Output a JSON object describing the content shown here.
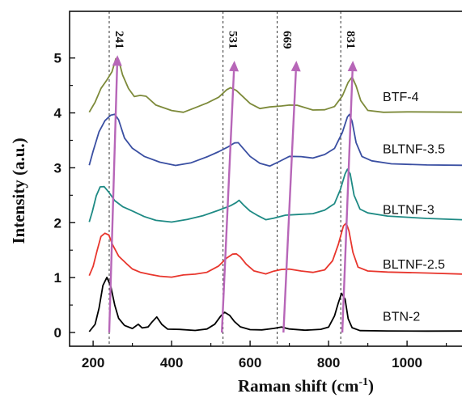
{
  "chart_data": {
    "type": "line",
    "xlabel": "Raman shift (cm",
    "xlabel_sup": "-1",
    "xlabel_end": ")",
    "ylabel": "Intensity (a.u.)",
    "xlim": [
      140,
      1140
    ],
    "ylim": [
      -0.25,
      5.85
    ],
    "xticks": [
      200,
      400,
      600,
      800,
      1000
    ],
    "yticks": [
      0,
      1,
      2,
      3,
      4,
      5
    ],
    "series": [
      {
        "name": "BTN-2",
        "color": "#000000",
        "offset": 0,
        "points": [
          [
            190,
            0.02
          ],
          [
            205,
            0.15
          ],
          [
            215,
            0.45
          ],
          [
            225,
            0.85
          ],
          [
            235,
            1.0
          ],
          [
            245,
            0.85
          ],
          [
            255,
            0.5
          ],
          [
            265,
            0.25
          ],
          [
            280,
            0.12
          ],
          [
            300,
            0.08
          ],
          [
            315,
            0.16
          ],
          [
            325,
            0.08
          ],
          [
            340,
            0.1
          ],
          [
            350,
            0.18
          ],
          [
            362,
            0.28
          ],
          [
            375,
            0.15
          ],
          [
            390,
            0.06
          ],
          [
            420,
            0.05
          ],
          [
            460,
            0.04
          ],
          [
            490,
            0.06
          ],
          [
            510,
            0.15
          ],
          [
            525,
            0.3
          ],
          [
            535,
            0.36
          ],
          [
            548,
            0.32
          ],
          [
            560,
            0.2
          ],
          [
            575,
            0.1
          ],
          [
            600,
            0.06
          ],
          [
            630,
            0.05
          ],
          [
            660,
            0.07
          ],
          [
            680,
            0.1
          ],
          [
            700,
            0.07
          ],
          [
            740,
            0.05
          ],
          [
            780,
            0.06
          ],
          [
            800,
            0.1
          ],
          [
            815,
            0.3
          ],
          [
            825,
            0.55
          ],
          [
            833,
            0.72
          ],
          [
            842,
            0.6
          ],
          [
            850,
            0.25
          ],
          [
            860,
            0.08
          ],
          [
            880,
            0.04
          ],
          [
            950,
            0.03
          ],
          [
            1050,
            0.03
          ],
          [
            1140,
            0.03
          ]
        ]
      },
      {
        "name": "BLTNF-2.5",
        "color": "#e8362d",
        "offset": 1,
        "points": [
          [
            190,
            0.03
          ],
          [
            200,
            0.2
          ],
          [
            210,
            0.5
          ],
          [
            220,
            0.75
          ],
          [
            230,
            0.8
          ],
          [
            240,
            0.78
          ],
          [
            250,
            0.6
          ],
          [
            265,
            0.4
          ],
          [
            285,
            0.25
          ],
          [
            300,
            0.15
          ],
          [
            320,
            0.1
          ],
          [
            345,
            0.05
          ],
          [
            370,
            0.02
          ],
          [
            400,
            0.0
          ],
          [
            430,
            0.04
          ],
          [
            460,
            0.06
          ],
          [
            490,
            0.1
          ],
          [
            520,
            0.22
          ],
          [
            540,
            0.35
          ],
          [
            555,
            0.42
          ],
          [
            565,
            0.44
          ],
          [
            575,
            0.38
          ],
          [
            590,
            0.25
          ],
          [
            610,
            0.12
          ],
          [
            640,
            0.06
          ],
          [
            660,
            0.12
          ],
          [
            680,
            0.15
          ],
          [
            700,
            0.15
          ],
          [
            730,
            0.12
          ],
          [
            760,
            0.1
          ],
          [
            790,
            0.15
          ],
          [
            810,
            0.3
          ],
          [
            825,
            0.6
          ],
          [
            838,
            0.95
          ],
          [
            845,
            1.0
          ],
          [
            852,
            0.85
          ],
          [
            862,
            0.45
          ],
          [
            875,
            0.2
          ],
          [
            900,
            0.12
          ],
          [
            950,
            0.1
          ],
          [
            1050,
            0.08
          ],
          [
            1140,
            0.06
          ]
        ]
      },
      {
        "name": "BLTNF-3",
        "color": "#1e8a84",
        "offset": 2,
        "points": [
          [
            190,
            0.02
          ],
          [
            198,
            0.2
          ],
          [
            208,
            0.5
          ],
          [
            218,
            0.65
          ],
          [
            228,
            0.65
          ],
          [
            240,
            0.55
          ],
          [
            255,
            0.4
          ],
          [
            275,
            0.3
          ],
          [
            300,
            0.22
          ],
          [
            330,
            0.12
          ],
          [
            360,
            0.05
          ],
          [
            400,
            0.02
          ],
          [
            440,
            0.06
          ],
          [
            480,
            0.12
          ],
          [
            520,
            0.22
          ],
          [
            550,
            0.3
          ],
          [
            565,
            0.36
          ],
          [
            572,
            0.4
          ],
          [
            585,
            0.32
          ],
          [
            600,
            0.22
          ],
          [
            620,
            0.12
          ],
          [
            640,
            0.06
          ],
          [
            660,
            0.08
          ],
          [
            690,
            0.13
          ],
          [
            720,
            0.14
          ],
          [
            760,
            0.16
          ],
          [
            790,
            0.22
          ],
          [
            815,
            0.35
          ],
          [
            830,
            0.6
          ],
          [
            842,
            0.88
          ],
          [
            848,
            0.98
          ],
          [
            855,
            0.9
          ],
          [
            865,
            0.5
          ],
          [
            880,
            0.25
          ],
          [
            900,
            0.18
          ],
          [
            950,
            0.12
          ],
          [
            1050,
            0.08
          ],
          [
            1140,
            0.06
          ]
        ]
      },
      {
        "name": "BLTNF-3.5",
        "color": "#3a4fa2",
        "offset": 3,
        "points": [
          [
            190,
            0.04
          ],
          [
            200,
            0.3
          ],
          [
            215,
            0.65
          ],
          [
            230,
            0.85
          ],
          [
            245,
            0.95
          ],
          [
            255,
            0.98
          ],
          [
            265,
            0.88
          ],
          [
            280,
            0.55
          ],
          [
            300,
            0.35
          ],
          [
            330,
            0.2
          ],
          [
            370,
            0.1
          ],
          [
            410,
            0.05
          ],
          [
            450,
            0.1
          ],
          [
            490,
            0.2
          ],
          [
            520,
            0.3
          ],
          [
            545,
            0.38
          ],
          [
            560,
            0.45
          ],
          [
            570,
            0.45
          ],
          [
            582,
            0.35
          ],
          [
            600,
            0.2
          ],
          [
            625,
            0.08
          ],
          [
            650,
            0.04
          ],
          [
            675,
            0.12
          ],
          [
            700,
            0.2
          ],
          [
            730,
            0.2
          ],
          [
            760,
            0.18
          ],
          [
            790,
            0.25
          ],
          [
            815,
            0.35
          ],
          [
            835,
            0.65
          ],
          [
            848,
            0.92
          ],
          [
            853,
            0.98
          ],
          [
            860,
            0.85
          ],
          [
            870,
            0.45
          ],
          [
            885,
            0.2
          ],
          [
            910,
            0.12
          ],
          [
            960,
            0.08
          ],
          [
            1050,
            0.05
          ],
          [
            1140,
            0.04
          ]
        ]
      },
      {
        "name": "BTF-4",
        "color": "#7d8a3a",
        "offset": 4,
        "points": [
          [
            190,
            0.02
          ],
          [
            205,
            0.2
          ],
          [
            220,
            0.45
          ],
          [
            235,
            0.6
          ],
          [
            248,
            0.75
          ],
          [
            258,
            0.98
          ],
          [
            265,
            0.96
          ],
          [
            275,
            0.7
          ],
          [
            290,
            0.45
          ],
          [
            305,
            0.3
          ],
          [
            320,
            0.32
          ],
          [
            335,
            0.3
          ],
          [
            360,
            0.15
          ],
          [
            400,
            0.05
          ],
          [
            430,
            0.02
          ],
          [
            460,
            0.1
          ],
          [
            490,
            0.18
          ],
          [
            520,
            0.28
          ],
          [
            540,
            0.42
          ],
          [
            550,
            0.45
          ],
          [
            565,
            0.4
          ],
          [
            580,
            0.3
          ],
          [
            600,
            0.18
          ],
          [
            625,
            0.08
          ],
          [
            650,
            0.1
          ],
          [
            680,
            0.12
          ],
          [
            700,
            0.15
          ],
          [
            720,
            0.13
          ],
          [
            760,
            0.05
          ],
          [
            790,
            0.05
          ],
          [
            815,
            0.12
          ],
          [
            835,
            0.3
          ],
          [
            850,
            0.55
          ],
          [
            860,
            0.65
          ],
          [
            870,
            0.5
          ],
          [
            882,
            0.22
          ],
          [
            900,
            0.05
          ],
          [
            940,
            0.02
          ],
          [
            1000,
            0.02
          ],
          [
            1140,
            0.02
          ]
        ]
      }
    ],
    "series_label_pos": [
      [
        938,
        0.3
      ],
      [
        938,
        1.25
      ],
      [
        938,
        2.25
      ],
      [
        938,
        3.35
      ],
      [
        938,
        4.3
      ]
    ],
    "reference_lines": [
      {
        "x": 241,
        "label": "241"
      },
      {
        "x": 531,
        "label": "531"
      },
      {
        "x": 669,
        "label": "669"
      },
      {
        "x": 831,
        "label": "831"
      }
    ],
    "trend_arrows": [
      {
        "from": [
          241,
          0.0
        ],
        "to": [
          262,
          5.05
        ]
      },
      {
        "from": [
          528,
          0.0
        ],
        "to": [
          560,
          4.95
        ]
      },
      {
        "from": [
          685,
          0.0
        ],
        "to": [
          718,
          4.95
        ]
      },
      {
        "from": [
          835,
          0.0
        ],
        "to": [
          862,
          4.95
        ]
      }
    ],
    "arrow_color": "#b766b8",
    "grid": false,
    "legend": "inline labels right"
  }
}
